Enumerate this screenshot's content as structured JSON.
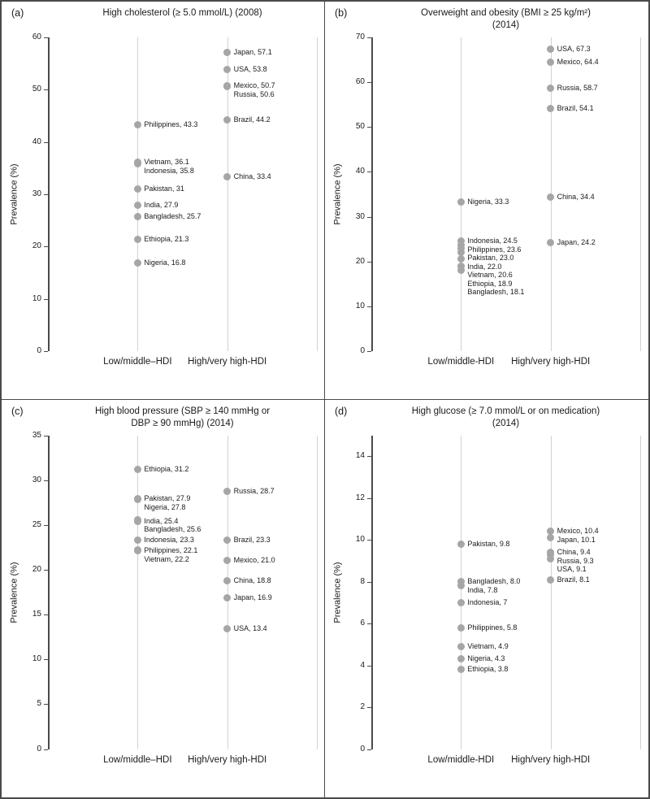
{
  "figure": {
    "background": "#ffffff",
    "border_color": "#4a4a4a",
    "dot_color": "#a6a6a6",
    "gridline_color": "#d2d2d2",
    "axis_color": "#4a4a4a",
    "text_color": "#1a1a1a"
  },
  "chart_data": [
    {
      "type": "scatter",
      "panel_letter": "(a)",
      "title_lines": [
        "High cholesterol (≥ 5.0 mmol/L) (2008)"
      ],
      "ylabel": "Prevalence (%)",
      "ylim": [
        0,
        60
      ],
      "yticks": [
        0,
        10,
        20,
        30,
        40,
        50,
        60
      ],
      "grid": "vertical",
      "categories": [
        "Low/middle–HDI",
        "High/very high-HDI"
      ],
      "series": [
        {
          "name": "Low/middle-HDI",
          "points": [
            {
              "country": "Philippines",
              "value": 43.3,
              "label": "Philippines, 43.3"
            },
            {
              "country": "Vietnam",
              "value": 36.1,
              "label": "Vietnam, 36.1"
            },
            {
              "country": "Indonesia",
              "value": 35.8,
              "label": "Indonesia, 35.8"
            },
            {
              "country": "Pakistan",
              "value": 31,
              "label": "Pakistan, 31"
            },
            {
              "country": "India",
              "value": 27.9,
              "label": "India, 27.9"
            },
            {
              "country": "Bangladesh",
              "value": 25.7,
              "label": "Bangladesh, 25.7"
            },
            {
              "country": "Ethiopia",
              "value": 21.3,
              "label": "Ethiopia, 21.3"
            },
            {
              "country": "Nigeria",
              "value": 16.8,
              "label": "Nigeria, 16.8"
            }
          ]
        },
        {
          "name": "High/very high-HDI",
          "points": [
            {
              "country": "Japan",
              "value": 57.1,
              "label": "Japan, 57.1"
            },
            {
              "country": "USA",
              "value": 53.8,
              "label": "USA, 53.8"
            },
            {
              "country": "Mexico",
              "value": 50.7,
              "label": "Mexico, 50.7"
            },
            {
              "country": "Russia",
              "value": 50.6,
              "label": "Russia, 50.6"
            },
            {
              "country": "Brazil",
              "value": 44.2,
              "label": "Brazil, 44.2"
            },
            {
              "country": "China",
              "value": 33.4,
              "label": "China, 33.4"
            }
          ]
        }
      ]
    },
    {
      "type": "scatter",
      "panel_letter": "(b)",
      "title_lines": [
        "Overweight and obesity (BMI ≥ 25 kg/m²)",
        "(2014)"
      ],
      "ylabel": "Prevalence (%)",
      "ylim": [
        0,
        70
      ],
      "yticks": [
        0,
        10,
        20,
        30,
        40,
        50,
        60,
        70
      ],
      "grid": "vertical",
      "categories": [
        "Low/middle-HDI",
        "High/very high-HDI"
      ],
      "series": [
        {
          "name": "Low/middle-HDI",
          "points": [
            {
              "country": "Nigeria",
              "value": 33.3,
              "label": "Nigeria, 33.3"
            },
            {
              "country": "Indonesia",
              "value": 24.5,
              "label": "Indonesia, 24.5"
            },
            {
              "country": "Philippines",
              "value": 23.6,
              "label": "Philippines, 23.6"
            },
            {
              "country": "Pakistan",
              "value": 23.0,
              "label": "Pakistan, 23.0"
            },
            {
              "country": "India",
              "value": 22.0,
              "label": "India, 22.0"
            },
            {
              "country": "Vietnam",
              "value": 20.6,
              "label": "Vietnam, 20.6"
            },
            {
              "country": "Ethiopia",
              "value": 18.9,
              "label": "Ethiopia, 18.9"
            },
            {
              "country": "Bangladesh",
              "value": 18.1,
              "label": "Bangladesh, 18.1"
            }
          ]
        },
        {
          "name": "High/very high-HDI",
          "points": [
            {
              "country": "USA",
              "value": 67.3,
              "label": "USA, 67.3"
            },
            {
              "country": "Mexico",
              "value": 64.4,
              "label": "Mexico, 64.4"
            },
            {
              "country": "Russia",
              "value": 58.7,
              "label": "Russia, 58.7"
            },
            {
              "country": "Brazil",
              "value": 54.1,
              "label": "Brazil, 54.1"
            },
            {
              "country": "China",
              "value": 34.4,
              "label": "China, 34.4"
            },
            {
              "country": "Japan",
              "value": 24.2,
              "label": "Japan, 24.2"
            }
          ]
        }
      ]
    },
    {
      "type": "scatter",
      "panel_letter": "(c)",
      "title_lines": [
        "High blood pressure (SBP ≥ 140 mmHg or",
        "DBP ≥ 90 mmHg) (2014)"
      ],
      "ylabel": "Prevalence (%)",
      "ylim": [
        0,
        35
      ],
      "yticks": [
        0,
        5,
        10,
        15,
        20,
        25,
        30,
        35
      ],
      "grid": "vertical",
      "categories": [
        "Low/middle–HDI",
        "High/very high-HDI"
      ],
      "series": [
        {
          "name": "Low/middle-HDI",
          "points": [
            {
              "country": "Ethiopia",
              "value": 31.2,
              "label": "Ethiopia, 31.2"
            },
            {
              "country": "Pakistan",
              "value": 27.9,
              "label": "Pakistan, 27.9"
            },
            {
              "country": "Nigeria",
              "value": 27.8,
              "label": "Nigeria, 27.8"
            },
            {
              "country": "India",
              "value": 25.4,
              "label": "India, 25.4"
            },
            {
              "country": "Bangladesh",
              "value": 25.6,
              "label": "Bangladesh, 25.6"
            },
            {
              "country": "Indonesia",
              "value": 23.3,
              "label": "Indonesia, 23.3"
            },
            {
              "country": "Philippines",
              "value": 22.1,
              "label": "Philippines, 22.1"
            },
            {
              "country": "Vietnam",
              "value": 22.2,
              "label": "Vietnam, 22.2"
            }
          ]
        },
        {
          "name": "High/very high-HDI",
          "points": [
            {
              "country": "Russia",
              "value": 28.7,
              "label": "Russia, 28.7"
            },
            {
              "country": "Brazil",
              "value": 23.3,
              "label": "Brazil, 23.3"
            },
            {
              "country": "Mexico",
              "value": 21.0,
              "label": "Mexico, 21.0"
            },
            {
              "country": "China",
              "value": 18.8,
              "label": "China, 18.8"
            },
            {
              "country": "Japan",
              "value": 16.9,
              "label": "Japan, 16.9"
            },
            {
              "country": "USA",
              "value": 13.4,
              "label": "USA, 13.4"
            }
          ]
        }
      ]
    },
    {
      "type": "scatter",
      "panel_letter": "(d)",
      "title_lines": [
        "High glucose (≥ 7.0 mmol/L or on medication)",
        "(2014)"
      ],
      "ylabel": "Prevalence (%)",
      "ylim": [
        0,
        15
      ],
      "yticks": [
        0,
        2,
        4,
        6,
        8,
        10,
        12,
        14
      ],
      "grid": "vertical",
      "categories": [
        "Low/middle-HDI",
        "High/very high-HDI"
      ],
      "series": [
        {
          "name": "Low/middle-HDI",
          "points": [
            {
              "country": "Pakistan",
              "value": 9.8,
              "label": "Pakistan, 9.8"
            },
            {
              "country": "Bangladesh",
              "value": 8.0,
              "label": "Bangladesh, 8.0"
            },
            {
              "country": "India",
              "value": 7.8,
              "label": "India, 7.8"
            },
            {
              "country": "Indonesia",
              "value": 7,
              "label": "Indonesia, 7"
            },
            {
              "country": "Philippines",
              "value": 5.8,
              "label": "Philippines, 5.8"
            },
            {
              "country": "Vietnam",
              "value": 4.9,
              "label": "Vietnam, 4.9"
            },
            {
              "country": "Nigeria",
              "value": 4.3,
              "label": "Nigeria, 4.3"
            },
            {
              "country": "Ethiopia",
              "value": 3.8,
              "label": "Ethiopia, 3.8"
            }
          ]
        },
        {
          "name": "High/very high-HDI",
          "points": [
            {
              "country": "Mexico",
              "value": 10.4,
              "label": "Mexico, 10.4"
            },
            {
              "country": "Japan",
              "value": 10.1,
              "label": "Japan, 10.1"
            },
            {
              "country": "China",
              "value": 9.4,
              "label": "China, 9.4"
            },
            {
              "country": "Russia",
              "value": 9.3,
              "label": "Russia, 9.3"
            },
            {
              "country": "USA",
              "value": 9.1,
              "label": "USA, 9.1"
            },
            {
              "country": "Brazil",
              "value": 8.1,
              "label": "Brazil, 8.1"
            }
          ]
        }
      ]
    }
  ]
}
